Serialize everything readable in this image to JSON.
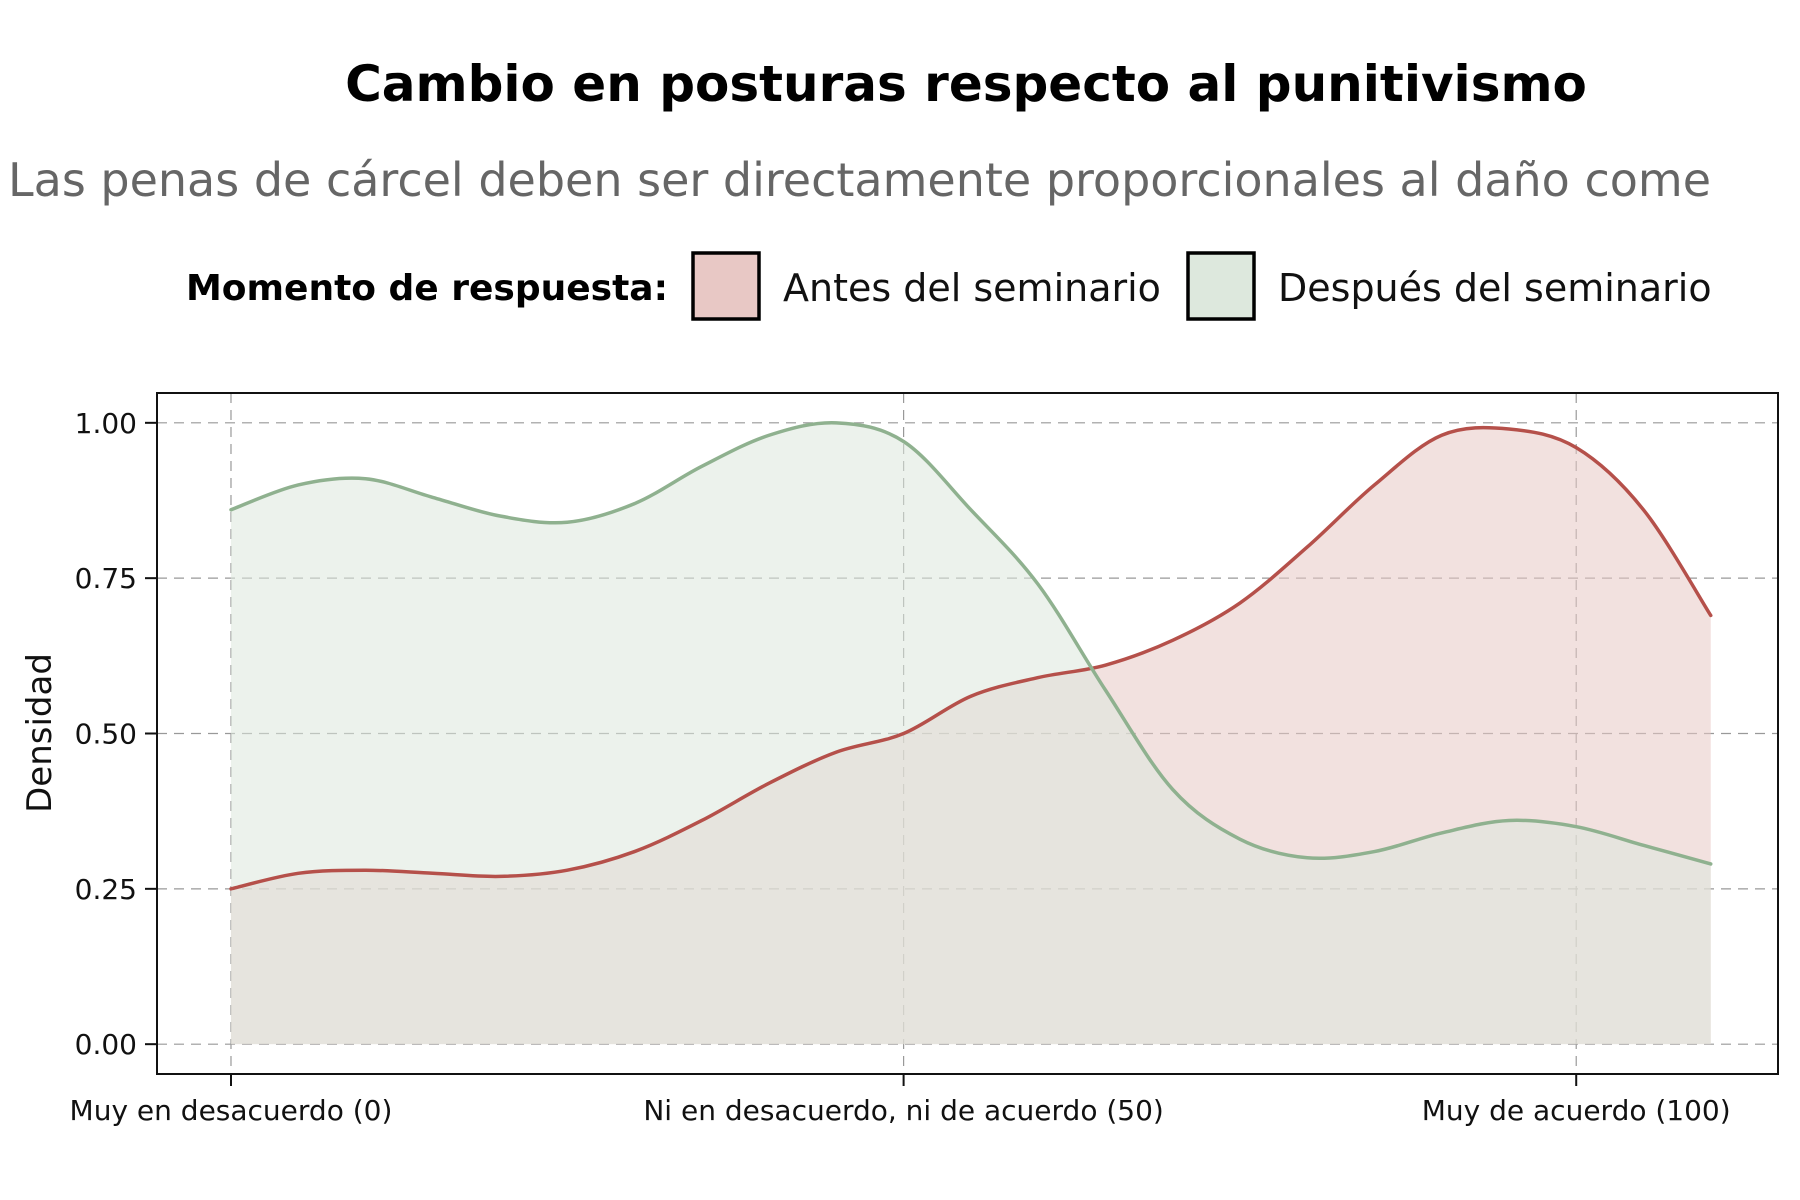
{
  "chart_data": {
    "type": "area",
    "title": "Cambio en posturas respecto al punitivismo",
    "subtitle": "Las penas de cárcel deben ser directamente proporcionales al daño come",
    "legend_title": "Momento de respuesta:",
    "legend_position": "top",
    "xlabel": "",
    "ylabel": "Densidad",
    "xlim": [
      -5.5,
      115
    ],
    "ylim": [
      -0.048,
      1.048
    ],
    "grid": true,
    "x_ticks": [
      {
        "value": 0,
        "label": "Muy en desacuerdo (0)"
      },
      {
        "value": 50,
        "label": "Ni en desacuerdo, ni de acuerdo (50)"
      },
      {
        "value": 100,
        "label": "Muy de acuerdo (100)"
      }
    ],
    "y_ticks": [
      {
        "value": 0,
        "label": "0.00"
      },
      {
        "value": 0.25,
        "label": "0.25"
      },
      {
        "value": 0.5,
        "label": "0.50"
      },
      {
        "value": 0.75,
        "label": "0.75"
      },
      {
        "value": 1,
        "label": "1.00"
      }
    ],
    "series": [
      {
        "name": "Antes del seminario",
        "line_color": "#b5504a",
        "fill_color": "#e8c8c5",
        "x": [
          0,
          5,
          10,
          15,
          20,
          25,
          30,
          35,
          40,
          45,
          50,
          55,
          60,
          65,
          70,
          75,
          80,
          85,
          90,
          95,
          100,
          105,
          110
        ],
        "y": [
          0.25,
          0.275,
          0.28,
          0.275,
          0.27,
          0.28,
          0.31,
          0.36,
          0.42,
          0.47,
          0.5,
          0.56,
          0.59,
          0.61,
          0.65,
          0.71,
          0.8,
          0.9,
          0.98,
          0.99,
          0.96,
          0.86,
          0.69
        ]
      },
      {
        "name": "Después del seminario",
        "line_color": "#8fb18f",
        "fill_color": "#dde8dd",
        "x": [
          0,
          5,
          10,
          15,
          20,
          25,
          30,
          35,
          40,
          45,
          50,
          55,
          60,
          65,
          70,
          75,
          80,
          85,
          90,
          95,
          100,
          105,
          110
        ],
        "y": [
          0.86,
          0.9,
          0.91,
          0.88,
          0.85,
          0.84,
          0.87,
          0.93,
          0.98,
          1.0,
          0.97,
          0.86,
          0.74,
          0.57,
          0.41,
          0.33,
          0.3,
          0.31,
          0.34,
          0.36,
          0.35,
          0.32,
          0.29
        ]
      }
    ]
  }
}
